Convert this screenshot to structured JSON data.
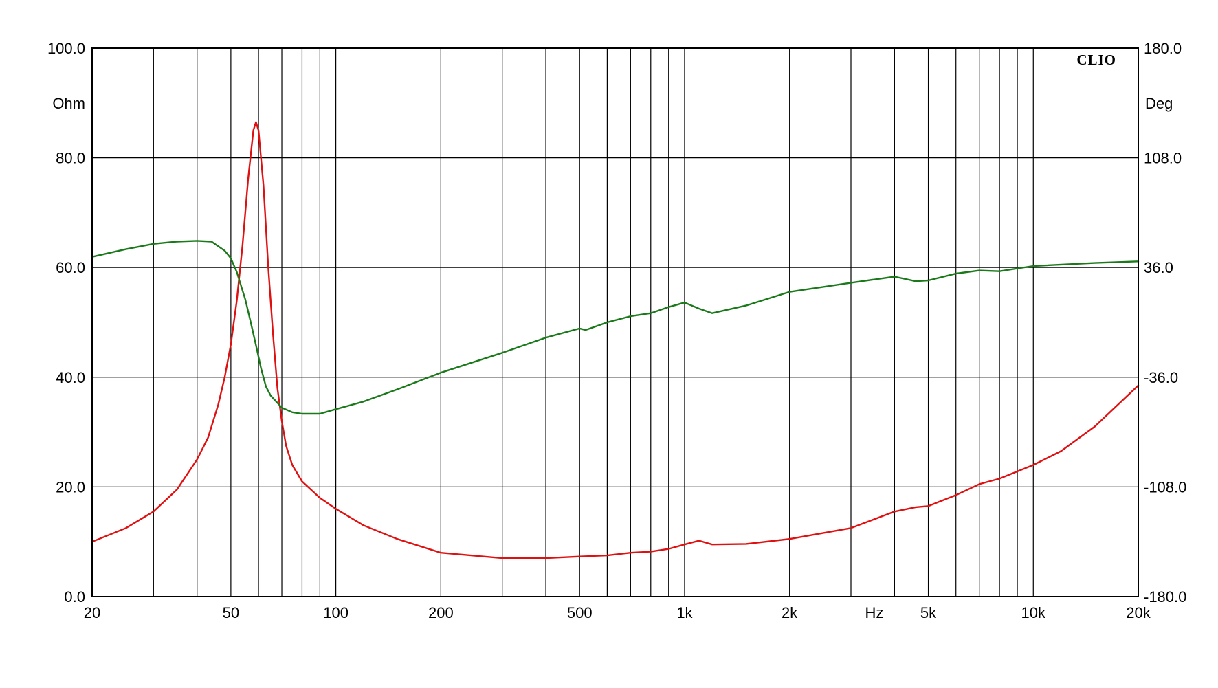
{
  "chart_data": {
    "type": "line",
    "brand": "CLIO",
    "xunit": "Hz",
    "xscale": "log",
    "xlim": [
      20,
      20000
    ],
    "x_tick_labels": [
      {
        "value": 20,
        "label": "20"
      },
      {
        "value": 50,
        "label": "50"
      },
      {
        "value": 100,
        "label": "100"
      },
      {
        "value": 200,
        "label": "200"
      },
      {
        "value": 500,
        "label": "500"
      },
      {
        "value": 1000,
        "label": "1k"
      },
      {
        "value": 2000,
        "label": "2k"
      },
      {
        "value": 5000,
        "label": "5k"
      },
      {
        "value": 10000,
        "label": "10k"
      },
      {
        "value": 20000,
        "label": "20k"
      }
    ],
    "x_gridlines": [
      20,
      30,
      40,
      50,
      60,
      70,
      80,
      90,
      100,
      200,
      300,
      400,
      500,
      600,
      700,
      800,
      900,
      1000,
      2000,
      3000,
      4000,
      5000,
      6000,
      7000,
      8000,
      9000,
      10000,
      20000
    ],
    "y_left": {
      "unit": "Ohm",
      "lim": [
        0,
        100
      ],
      "ticks": [
        {
          "value": 0,
          "label": "0.0"
        },
        {
          "value": 20,
          "label": "20.0"
        },
        {
          "value": 40,
          "label": "40.0"
        },
        {
          "value": 60,
          "label": "60.0"
        },
        {
          "value": 80,
          "label": "80.0"
        },
        {
          "value": 100,
          "label": "100.0"
        }
      ]
    },
    "y_right": {
      "unit": "Deg",
      "lim": [
        -180,
        180
      ],
      "ticks": [
        {
          "value": -180,
          "label": "-180.0"
        },
        {
          "value": -108,
          "label": "-108.0"
        },
        {
          "value": -36,
          "label": "-36.0"
        },
        {
          "value": 36,
          "label": "36.0"
        },
        {
          "value": 108,
          "label": "108.0"
        },
        {
          "value": 180,
          "label": "180.0"
        }
      ]
    },
    "grid": true,
    "series": [
      {
        "axis": "left",
        "color": "#e01010",
        "points": [
          [
            20,
            10
          ],
          [
            25,
            12.5
          ],
          [
            30,
            15.5
          ],
          [
            35,
            19.5
          ],
          [
            40,
            25
          ],
          [
            43,
            29
          ],
          [
            46,
            35
          ],
          [
            48,
            40
          ],
          [
            50,
            46
          ],
          [
            52,
            54
          ],
          [
            54,
            64
          ],
          [
            56,
            76
          ],
          [
            58,
            85
          ],
          [
            59,
            86.5
          ],
          [
            60,
            85
          ],
          [
            62,
            75
          ],
          [
            64,
            60
          ],
          [
            66,
            48
          ],
          [
            68,
            38
          ],
          [
            70,
            32
          ],
          [
            72,
            27.5
          ],
          [
            75,
            24
          ],
          [
            80,
            21
          ],
          [
            90,
            18
          ],
          [
            100,
            16
          ],
          [
            120,
            13
          ],
          [
            150,
            10.5
          ],
          [
            200,
            8
          ],
          [
            300,
            7
          ],
          [
            400,
            7
          ],
          [
            500,
            7.3
          ],
          [
            600,
            7.5
          ],
          [
            700,
            8
          ],
          [
            800,
            8.2
          ],
          [
            900,
            8.7
          ],
          [
            1000,
            9.5
          ],
          [
            1100,
            10.2
          ],
          [
            1200,
            9.5
          ],
          [
            1500,
            9.6
          ],
          [
            2000,
            10.5
          ],
          [
            3000,
            12.5
          ],
          [
            4000,
            15.5
          ],
          [
            4600,
            16.3
          ],
          [
            5000,
            16.5
          ],
          [
            6000,
            18.5
          ],
          [
            7000,
            20.5
          ],
          [
            8000,
            21.5
          ],
          [
            10000,
            24
          ],
          [
            12000,
            26.5
          ],
          [
            15000,
            31
          ],
          [
            20000,
            38.5
          ]
        ]
      },
      {
        "axis": "right",
        "color": "#1a7a1a",
        "points": [
          [
            20,
            43
          ],
          [
            25,
            48
          ],
          [
            30,
            51.5
          ],
          [
            35,
            53
          ],
          [
            40,
            53.5
          ],
          [
            44,
            53
          ],
          [
            48,
            47
          ],
          [
            50,
            42
          ],
          [
            52,
            33
          ],
          [
            55,
            15
          ],
          [
            57,
            0
          ],
          [
            59,
            -15
          ],
          [
            61,
            -30
          ],
          [
            63,
            -42
          ],
          [
            65,
            -48
          ],
          [
            70,
            -56
          ],
          [
            75,
            -59
          ],
          [
            80,
            -60
          ],
          [
            90,
            -60
          ],
          [
            100,
            -57
          ],
          [
            120,
            -52
          ],
          [
            150,
            -44
          ],
          [
            200,
            -33
          ],
          [
            300,
            -20
          ],
          [
            400,
            -10
          ],
          [
            500,
            -4
          ],
          [
            520,
            -5
          ],
          [
            600,
            0
          ],
          [
            700,
            4
          ],
          [
            800,
            6
          ],
          [
            900,
            10
          ],
          [
            1000,
            13
          ],
          [
            1100,
            9
          ],
          [
            1200,
            6
          ],
          [
            1500,
            11
          ],
          [
            2000,
            20
          ],
          [
            3000,
            26
          ],
          [
            4000,
            30
          ],
          [
            4600,
            27
          ],
          [
            5000,
            27.5
          ],
          [
            6000,
            32
          ],
          [
            7000,
            34
          ],
          [
            8000,
            33.5
          ],
          [
            10000,
            37
          ],
          [
            15000,
            39
          ],
          [
            20000,
            40
          ]
        ]
      }
    ]
  }
}
